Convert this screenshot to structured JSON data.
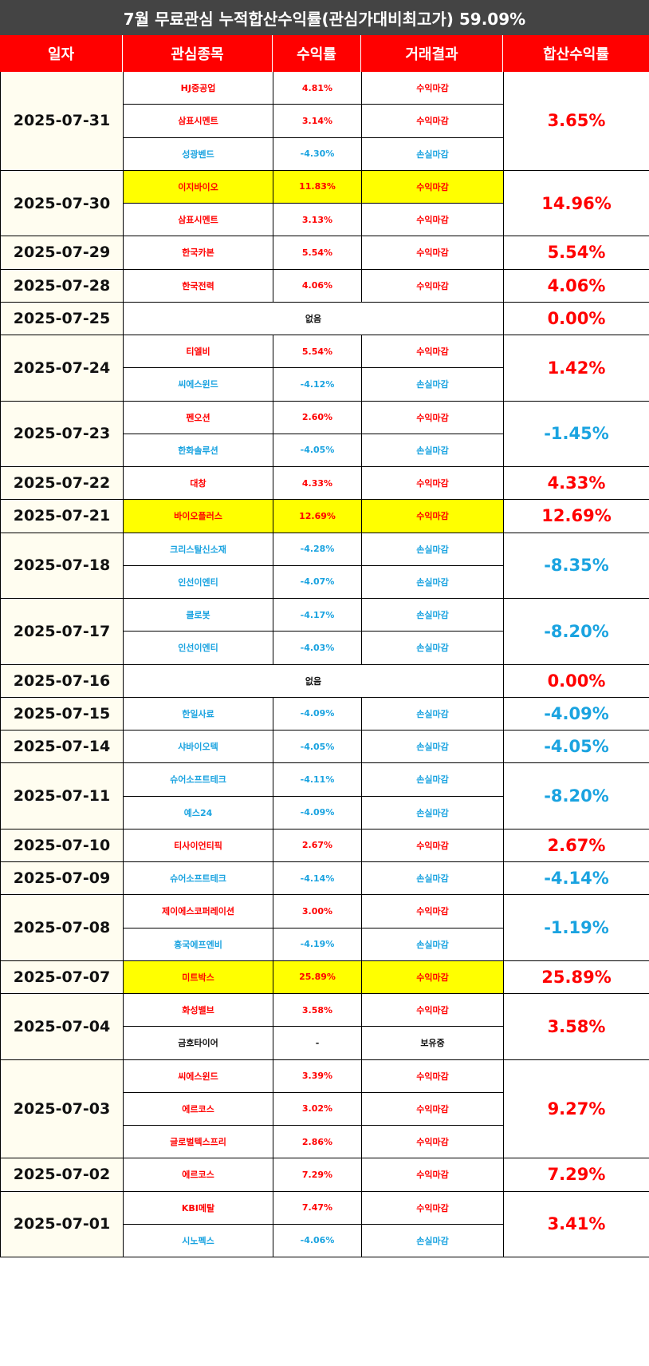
{
  "title": "7월 무료관심 누적합산수익률(관심가대비최고가) 59.09%",
  "headers": [
    "일자",
    "관심종목",
    "수익률",
    "거래결과",
    "합산수익률"
  ],
  "colors": {
    "header_bg": "#ff0000",
    "title_bg": "#444444",
    "positive": "#ff0000",
    "negative": "#1aa3e0",
    "highlight": "#ffff00",
    "date_bg": "#fffdf0"
  },
  "days": [
    {
      "date": "2025-07-31",
      "total": "3.65%",
      "tone": "pos",
      "stocks": [
        {
          "name": "HJ중공업",
          "ret": "4.81%",
          "result": "수익마감",
          "tone": "pos",
          "hl": false
        },
        {
          "name": "삼표시멘트",
          "ret": "3.14%",
          "result": "수익마감",
          "tone": "pos",
          "hl": false
        },
        {
          "name": "성광벤드",
          "ret": "-4.30%",
          "result": "손실마감",
          "tone": "neg",
          "hl": false
        }
      ]
    },
    {
      "date": "2025-07-30",
      "total": "14.96%",
      "tone": "pos",
      "stocks": [
        {
          "name": "이지바이오",
          "ret": "11.83%",
          "result": "수익마감",
          "tone": "pos",
          "hl": true
        },
        {
          "name": "삼표시멘트",
          "ret": "3.13%",
          "result": "수익마감",
          "tone": "pos",
          "hl": false
        }
      ]
    },
    {
      "date": "2025-07-29",
      "total": "5.54%",
      "tone": "pos",
      "stocks": [
        {
          "name": "한국카본",
          "ret": "5.54%",
          "result": "수익마감",
          "tone": "pos",
          "hl": false
        }
      ]
    },
    {
      "date": "2025-07-28",
      "total": "4.06%",
      "tone": "pos",
      "stocks": [
        {
          "name": "한국전력",
          "ret": "4.06%",
          "result": "수익마감",
          "tone": "pos",
          "hl": false
        }
      ]
    },
    {
      "date": "2025-07-25",
      "total": "0.00%",
      "tone": "pos",
      "none": "없음",
      "stocks": []
    },
    {
      "date": "2025-07-24",
      "total": "1.42%",
      "tone": "pos",
      "stocks": [
        {
          "name": "티엘비",
          "ret": "5.54%",
          "result": "수익마감",
          "tone": "pos",
          "hl": false
        },
        {
          "name": "씨에스윈드",
          "ret": "-4.12%",
          "result": "손실마감",
          "tone": "neg",
          "hl": false
        }
      ]
    },
    {
      "date": "2025-07-23",
      "total": "-1.45%",
      "tone": "neg",
      "stocks": [
        {
          "name": "펜오션",
          "ret": "2.60%",
          "result": "수익마감",
          "tone": "pos",
          "hl": false
        },
        {
          "name": "한화솔루션",
          "ret": "-4.05%",
          "result": "손실마감",
          "tone": "neg",
          "hl": false
        }
      ]
    },
    {
      "date": "2025-07-22",
      "total": "4.33%",
      "tone": "pos",
      "stocks": [
        {
          "name": "대창",
          "ret": "4.33%",
          "result": "수익마감",
          "tone": "pos",
          "hl": false
        }
      ]
    },
    {
      "date": "2025-07-21",
      "total": "12.69%",
      "tone": "pos",
      "stocks": [
        {
          "name": "바이오플러스",
          "ret": "12.69%",
          "result": "수익마감",
          "tone": "pos",
          "hl": true
        }
      ]
    },
    {
      "date": "2025-07-18",
      "total": "-8.35%",
      "tone": "neg",
      "stocks": [
        {
          "name": "크리스탈신소재",
          "ret": "-4.28%",
          "result": "손실마감",
          "tone": "neg",
          "hl": false
        },
        {
          "name": "인선이엔티",
          "ret": "-4.07%",
          "result": "손실마감",
          "tone": "neg",
          "hl": false
        }
      ]
    },
    {
      "date": "2025-07-17",
      "total": "-8.20%",
      "tone": "neg",
      "stocks": [
        {
          "name": "클로봇",
          "ret": "-4.17%",
          "result": "손실마감",
          "tone": "neg",
          "hl": false
        },
        {
          "name": "인선이엔티",
          "ret": "-4.03%",
          "result": "손실마감",
          "tone": "neg",
          "hl": false
        }
      ]
    },
    {
      "date": "2025-07-16",
      "total": "0.00%",
      "tone": "pos",
      "none": "없음",
      "stocks": []
    },
    {
      "date": "2025-07-15",
      "total": "-4.09%",
      "tone": "neg",
      "stocks": [
        {
          "name": "한일사료",
          "ret": "-4.09%",
          "result": "손실마감",
          "tone": "neg",
          "hl": false
        }
      ]
    },
    {
      "date": "2025-07-14",
      "total": "-4.05%",
      "tone": "neg",
      "stocks": [
        {
          "name": "샤바이오텍",
          "ret": "-4.05%",
          "result": "손실마감",
          "tone": "neg",
          "hl": false
        }
      ]
    },
    {
      "date": "2025-07-11",
      "total": "-8.20%",
      "tone": "neg",
      "stocks": [
        {
          "name": "슈어소프트테크",
          "ret": "-4.11%",
          "result": "손실마감",
          "tone": "neg",
          "hl": false
        },
        {
          "name": "예스24",
          "ret": "-4.09%",
          "result": "손실마감",
          "tone": "neg",
          "hl": false
        }
      ]
    },
    {
      "date": "2025-07-10",
      "total": "2.67%",
      "tone": "pos",
      "stocks": [
        {
          "name": "티사이언티픽",
          "ret": "2.67%",
          "result": "수익마감",
          "tone": "pos",
          "hl": false
        }
      ]
    },
    {
      "date": "2025-07-09",
      "total": "-4.14%",
      "tone": "neg",
      "stocks": [
        {
          "name": "슈어소프트테크",
          "ret": "-4.14%",
          "result": "손실마감",
          "tone": "neg",
          "hl": false
        }
      ]
    },
    {
      "date": "2025-07-08",
      "total": "-1.19%",
      "tone": "neg",
      "stocks": [
        {
          "name": "제이에스코퍼레이션",
          "ret": "3.00%",
          "result": "수익마감",
          "tone": "pos",
          "hl": false
        },
        {
          "name": "흥국에프엔비",
          "ret": "-4.19%",
          "result": "손실마감",
          "tone": "neg",
          "hl": false
        }
      ]
    },
    {
      "date": "2025-07-07",
      "total": "25.89%",
      "tone": "pos",
      "stocks": [
        {
          "name": "미트박스",
          "ret": "25.89%",
          "result": "수익마감",
          "tone": "pos",
          "hl": true
        }
      ]
    },
    {
      "date": "2025-07-04",
      "total": "3.58%",
      "tone": "pos",
      "stocks": [
        {
          "name": "화성밸브",
          "ret": "3.58%",
          "result": "수익마감",
          "tone": "pos",
          "hl": false
        },
        {
          "name": "금호타이어",
          "ret": "-",
          "result": "보유중",
          "tone": "neu",
          "hl": false
        }
      ]
    },
    {
      "date": "2025-07-03",
      "total": "9.27%",
      "tone": "pos",
      "stocks": [
        {
          "name": "씨에스윈드",
          "ret": "3.39%",
          "result": "수익마감",
          "tone": "pos",
          "hl": false
        },
        {
          "name": "에르코스",
          "ret": "3.02%",
          "result": "수익마감",
          "tone": "pos",
          "hl": false
        },
        {
          "name": "글로벌텍스프리",
          "ret": "2.86%",
          "result": "수익마감",
          "tone": "pos",
          "hl": false
        }
      ]
    },
    {
      "date": "2025-07-02",
      "total": "7.29%",
      "tone": "pos",
      "stocks": [
        {
          "name": "에르코스",
          "ret": "7.29%",
          "result": "수익마감",
          "tone": "pos",
          "hl": false
        }
      ]
    },
    {
      "date": "2025-07-01",
      "total": "3.41%",
      "tone": "pos",
      "stocks": [
        {
          "name": "KBI메탈",
          "ret": "7.47%",
          "result": "수익마감",
          "tone": "pos",
          "hl": false
        },
        {
          "name": "시노펙스",
          "ret": "-4.06%",
          "result": "손실마감",
          "tone": "neg",
          "hl": false
        }
      ]
    }
  ]
}
